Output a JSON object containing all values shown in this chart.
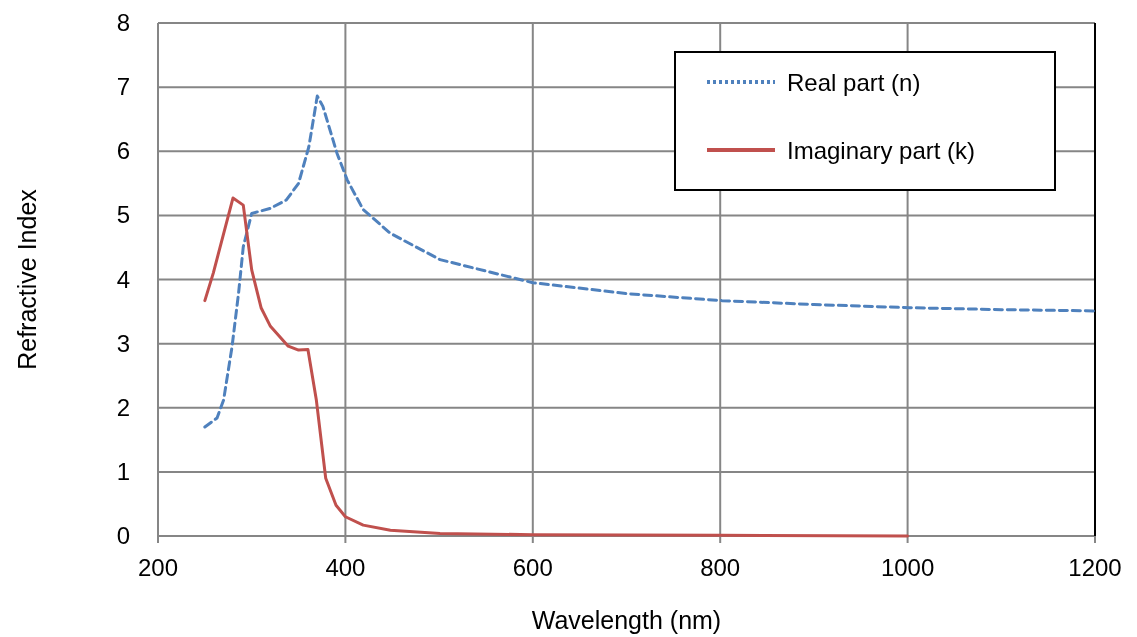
{
  "chart_data": {
    "type": "line",
    "xlabel": "Wavelength (nm)",
    "ylabel": "Refractive Index",
    "xlim": [
      200,
      1200
    ],
    "xticks": [
      200,
      400,
      600,
      800,
      1000,
      1200
    ],
    "ylim": [
      0,
      8
    ],
    "yticks": [
      0,
      1,
      2,
      3,
      4,
      5,
      6,
      7,
      8
    ],
    "grid": true,
    "legend": "top right",
    "series": [
      {
        "name": "Real part (n)",
        "color": "#4f81bd",
        "line_style": "dashed",
        "x": [
          250,
          263,
          270,
          279,
          286,
          291,
          300,
          320,
          337,
          350,
          361,
          370,
          376,
          391,
          402,
          419,
          448,
          501,
          600,
          700,
          802,
          900,
          1002,
          1100,
          1200
        ],
        "values": [
          1.7,
          1.84,
          2.12,
          2.95,
          3.79,
          4.51,
          5.03,
          5.11,
          5.24,
          5.5,
          6.07,
          6.86,
          6.7,
          5.97,
          5.55,
          5.09,
          4.72,
          4.31,
          3.95,
          3.78,
          3.67,
          3.61,
          3.56,
          3.53,
          3.51
        ]
      },
      {
        "name": "Imaginary part (k)",
        "color": "#c0504d",
        "line_style": "solid",
        "x": [
          250,
          259,
          280,
          291,
          300,
          310,
          320,
          339,
          350,
          360,
          369,
          379,
          390,
          400,
          419,
          448,
          501,
          600,
          800,
          1000
        ],
        "values": [
          3.67,
          4.1,
          5.27,
          5.16,
          4.15,
          3.56,
          3.27,
          2.96,
          2.9,
          2.91,
          2.12,
          0.9,
          0.48,
          0.3,
          0.17,
          0.09,
          0.04,
          0.02,
          0.01,
          0
        ]
      }
    ]
  }
}
